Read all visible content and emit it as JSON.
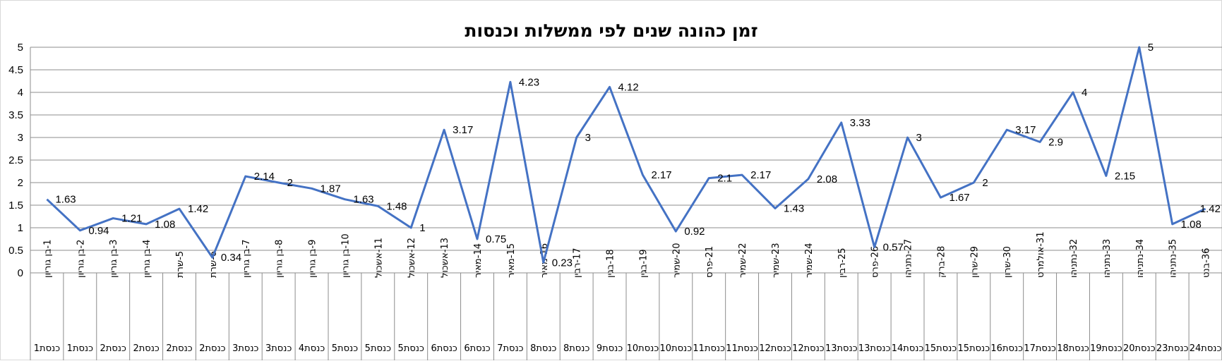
{
  "chart_data": {
    "type": "line",
    "title": "זמן כהונה שנים לפי ממשלות וכנסות",
    "xlabel": "",
    "ylabel": "",
    "ylim": [
      0,
      5
    ],
    "yticks": [
      "0",
      "0.5",
      "1",
      "1.5",
      "2",
      "2.5",
      "3",
      "3.5",
      "4",
      "4.5",
      "5"
    ],
    "grid": true,
    "legend": "none",
    "line_color": "#4472c4",
    "categories": [
      {
        "primary": "1-בן גוריון",
        "secondary": "כנסת1"
      },
      {
        "primary": "2-בן גוריון",
        "secondary": "כנסת1"
      },
      {
        "primary": "3-בן גוריון",
        "secondary": "כנסת2"
      },
      {
        "primary": "4-בן גוריון",
        "secondary": "כנסת2"
      },
      {
        "primary": "5-שרת",
        "secondary": "כנסת2"
      },
      {
        "primary": "6-שרת",
        "secondary": "כנסת2"
      },
      {
        "primary": "7-בן גוריון",
        "secondary": "כנסת3"
      },
      {
        "primary": "8-בן גוריון",
        "secondary": "כנסת3"
      },
      {
        "primary": "9-בן גוריון",
        "secondary": "כנסת4"
      },
      {
        "primary": "10-בן גוריון",
        "secondary": "כנסת5"
      },
      {
        "primary": "11-אשכול",
        "secondary": "כנסת5"
      },
      {
        "primary": "12-אשכול",
        "secondary": "כנסת5"
      },
      {
        "primary": "13-אשכול",
        "secondary": "כנסת6"
      },
      {
        "primary": "14-מאיר",
        "secondary": "כנסת6"
      },
      {
        "primary": "15-מאיר",
        "secondary": "כנסת7"
      },
      {
        "primary": "16-מאיר",
        "secondary": "כנסת8"
      },
      {
        "primary": "17-רבין",
        "secondary": "כנסת8"
      },
      {
        "primary": "18-בגין",
        "secondary": "כנסת9"
      },
      {
        "primary": "19-בגין",
        "secondary": "כנסת10"
      },
      {
        "primary": "20-שמיר",
        "secondary": "כנסת10"
      },
      {
        "primary": "21-פרס",
        "secondary": "כנסת11"
      },
      {
        "primary": "22-שמיר",
        "secondary": "כנסת11"
      },
      {
        "primary": "23-שמיר",
        "secondary": "כנסת12"
      },
      {
        "primary": "24-שמיר",
        "secondary": "כנסת12"
      },
      {
        "primary": "25-רבין",
        "secondary": "כנסת13"
      },
      {
        "primary": "26-פרס",
        "secondary": "כנסת13"
      },
      {
        "primary": "27-נתניהו",
        "secondary": "כנסת14"
      },
      {
        "primary": "28-ברק",
        "secondary": "כנסת15"
      },
      {
        "primary": "29-שרון",
        "secondary": "כנסת15"
      },
      {
        "primary": "30-שרון",
        "secondary": "כנסת16"
      },
      {
        "primary": "31-אולמרט",
        "secondary": "כנסת17"
      },
      {
        "primary": "32-נתניהו",
        "secondary": "כנסת18"
      },
      {
        "primary": "33-נתניהו",
        "secondary": "כנסת19"
      },
      {
        "primary": "34-נתניהו",
        "secondary": "כנסת20"
      },
      {
        "primary": "35-נתניהו",
        "secondary": "כנסת23"
      },
      {
        "primary": "36-בנט",
        "secondary": "כנסת24"
      }
    ],
    "series": [
      {
        "values": [
          1.63,
          0.94,
          1.21,
          1.08,
          1.42,
          0.34,
          2.14,
          2,
          1.87,
          1.63,
          1.48,
          1,
          3.17,
          0.75,
          4.23,
          0.23,
          3,
          4.12,
          2.17,
          0.92,
          2.1,
          2.17,
          1.43,
          2.08,
          3.33,
          0.57,
          3,
          1.67,
          2,
          3.17,
          2.9,
          4,
          2.15,
          5,
          1.08,
          1.42
        ],
        "labels": [
          "1.63",
          "0.94",
          "1.21",
          "1.08",
          "1.42",
          "0.34",
          "2.14",
          "2",
          "1.87",
          "1.63",
          "1.48",
          "1",
          "3.17",
          "0.75",
          "4.23",
          "0.23",
          "3",
          "4.12",
          "2.17",
          "0.92",
          "2.1",
          "2.17",
          "1.43",
          "2.08",
          "3.33",
          "0.57",
          "3",
          "1.67",
          "2",
          "3.17",
          "2.9",
          "4",
          "2.15",
          "5",
          "1.08",
          "1.42"
        ]
      }
    ]
  }
}
